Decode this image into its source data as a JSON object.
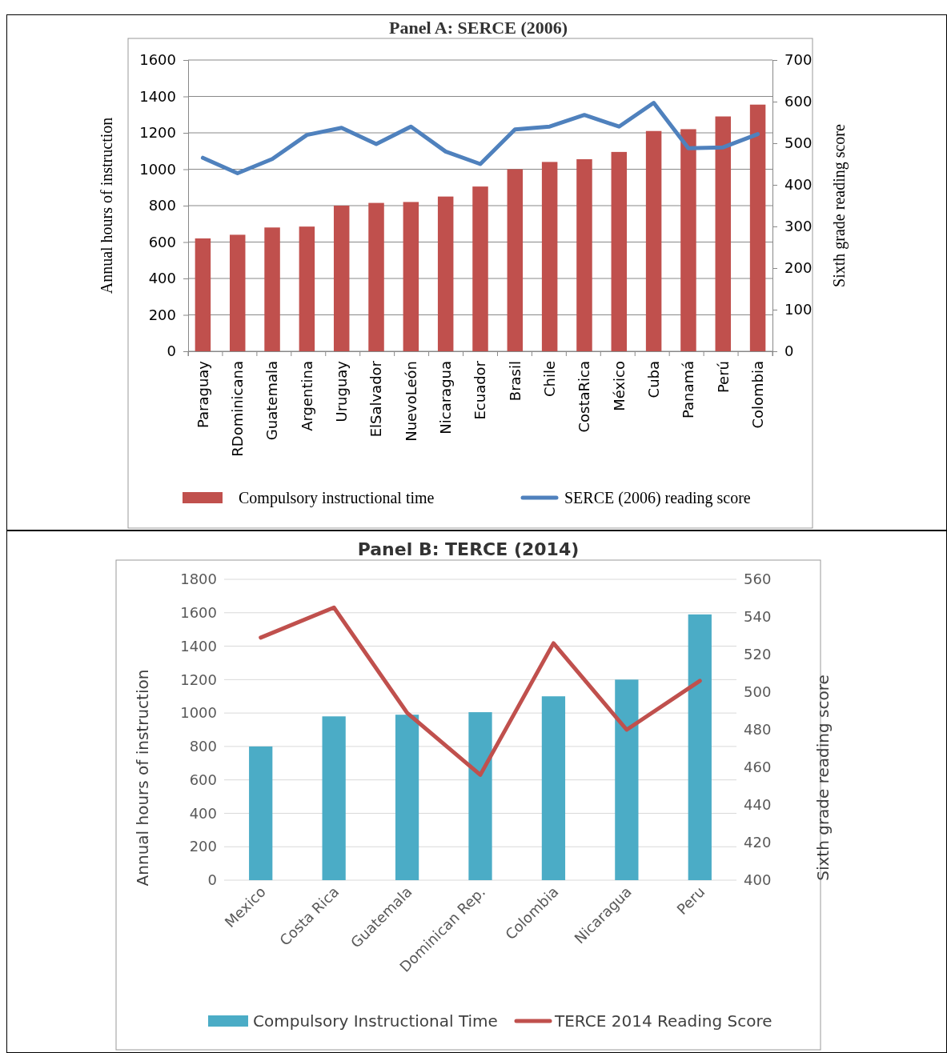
{
  "chart_data": [
    {
      "type": "bar",
      "title": "Panel A: SERCE (2006)",
      "ylabel": "Annual hours of instruction",
      "y2label": "Sixth grade reading score",
      "categories": [
        "Paraguay",
        "RDominicana",
        "Guatemala",
        "Argentina",
        "Uruguay",
        "ElSalvador",
        "NuevoLeón",
        "Nicaragua",
        "Ecuador",
        "Brasil",
        "Chile",
        "CostaRica",
        "México",
        "Cuba",
        "Panamá",
        "Perú",
        "Colombia"
      ],
      "series": [
        {
          "name": "Compulsory instructional time",
          "color": "#c0504d",
          "values": [
            620,
            640,
            680,
            685,
            800,
            815,
            820,
            850,
            905,
            1000,
            1040,
            1055,
            1095,
            1210,
            1220,
            1290,
            1355
          ]
        },
        {
          "name": "SERCE (2006) reading score",
          "type": "line",
          "axis": "y2",
          "color": "#4f81bd",
          "values": [
            465,
            428,
            462,
            520,
            537,
            498,
            540,
            480,
            450,
            533,
            540,
            568,
            540,
            597,
            488,
            490,
            522
          ]
        }
      ],
      "ylim": [
        0,
        1600
      ],
      "yticks": [
        0,
        200,
        400,
        600,
        800,
        1000,
        1200,
        1400,
        1600
      ],
      "y2lim": [
        0,
        700
      ],
      "y2ticks": [
        0,
        100,
        200,
        300,
        400,
        500,
        600,
        700
      ],
      "grid": "y",
      "legend": "bottom",
      "marker": "none"
    },
    {
      "type": "bar",
      "title": "Panel B: TERCE (2014)",
      "ylabel": "Annual hours of instruction",
      "y2label": "Sixth grade reading score",
      "categories": [
        "Mexico",
        "Costa Rica",
        "Guatemala",
        "Dominican Rep.",
        "Colombia",
        "Nicaragua",
        "Peru"
      ],
      "series": [
        {
          "name": "Compulsory Instructional Time",
          "color": "#4bacc6",
          "values": [
            800,
            980,
            990,
            1005,
            1100,
            1200,
            1590
          ]
        },
        {
          "name": "TERCE 2014 Reading Score",
          "type": "line",
          "axis": "y2",
          "color": "#c0504d",
          "values": [
            529,
            545,
            489,
            456,
            526,
            480,
            506
          ]
        }
      ],
      "ylim": [
        0,
        1800
      ],
      "yticks": [
        0,
        200,
        400,
        600,
        800,
        1000,
        1200,
        1400,
        1600,
        1800
      ],
      "y2lim": [
        400,
        560
      ],
      "y2ticks": [
        400,
        420,
        440,
        460,
        480,
        500,
        520,
        540,
        560
      ],
      "grid": "y",
      "legend": "bottom",
      "marker": "none"
    }
  ]
}
